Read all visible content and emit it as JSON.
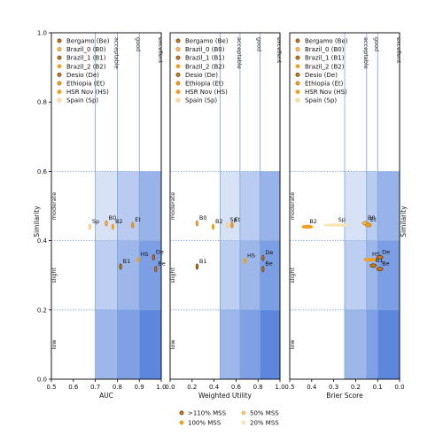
{
  "chart_data": [
    {
      "type": "scatter",
      "xlabel": "AUC",
      "ylabel": "Similarity",
      "xlim": [
        0.5,
        1.0
      ],
      "ylim": [
        0.0,
        1.0
      ],
      "x_reversed": false,
      "xticks": [
        "0.5",
        "0.6",
        "0.7",
        "0.8",
        "0.9",
        "1.0"
      ],
      "yticks": [
        "0.0",
        "0.2",
        "0.4",
        "0.6",
        "0.8",
        "1.0"
      ],
      "thresholds": [
        {
          "x": 0.7,
          "label": ""
        },
        {
          "x": 0.8,
          "label": "acceptable"
        },
        {
          "x": 0.9,
          "label": "good"
        },
        {
          "x": 1.0,
          "label": "excellent"
        }
      ],
      "points": [
        {
          "label": "Sp",
          "x": 0.675,
          "y": 0.44
        },
        {
          "label": "B0",
          "x": 0.75,
          "y": 0.45
        },
        {
          "label": "B2",
          "x": 0.78,
          "y": 0.44
        },
        {
          "label": "Et",
          "x": 0.87,
          "y": 0.445
        },
        {
          "label": "HS",
          "x": 0.895,
          "y": 0.345
        },
        {
          "label": "B1",
          "x": 0.815,
          "y": 0.325
        },
        {
          "label": "De",
          "x": 0.965,
          "y": 0.352
        },
        {
          "label": "Be",
          "x": 0.975,
          "y": 0.318
        }
      ]
    },
    {
      "type": "scatter",
      "xlabel": "Weighted Utility",
      "ylabel": "",
      "xlim": [
        -0.1,
        1.0
      ],
      "ylim": [
        0.0,
        1.0
      ],
      "x_reversed": false,
      "xticks": [
        "0.0",
        "0.2",
        "0.4",
        "0.6",
        "0.8",
        "1.0"
      ],
      "yticks": [],
      "thresholds": [
        {
          "x": 0.4,
          "label": ""
        },
        {
          "x": 0.6,
          "label": "acceptable"
        },
        {
          "x": 0.8,
          "label": "good"
        },
        {
          "x": 1.0,
          "label": "excellent"
        }
      ],
      "points": [
        {
          "label": "B0",
          "x": 0.17,
          "y": 0.45
        },
        {
          "label": "B2",
          "x": 0.33,
          "y": 0.44
        },
        {
          "label": "Sp",
          "x": 0.475,
          "y": 0.445
        },
        {
          "label": "Et",
          "x": 0.52,
          "y": 0.445
        },
        {
          "label": "HS",
          "x": 0.65,
          "y": 0.342
        },
        {
          "label": "B1",
          "x": 0.17,
          "y": 0.325
        },
        {
          "label": "De",
          "x": 0.83,
          "y": 0.35
        },
        {
          "label": "Be",
          "x": 0.83,
          "y": 0.318
        }
      ]
    },
    {
      "type": "scatter",
      "xlabel": "Brier Score",
      "ylabel": "Similarity",
      "xlim": [
        0.5,
        0.0
      ],
      "ylim": [
        0.0,
        1.0
      ],
      "x_reversed": true,
      "xticks": [
        "0.5",
        "0.4",
        "0.3",
        "0.2",
        "0.1",
        "0.0"
      ],
      "yticks": [],
      "thresholds": [
        {
          "x": 0.25,
          "label": ""
        },
        {
          "x": 0.15,
          "label": "acceptable"
        },
        {
          "x": 0.1,
          "label": "good"
        },
        {
          "x": 0.0,
          "label": "excellent"
        }
      ],
      "points": [
        {
          "label": "B2",
          "x": 0.42,
          "y": 0.44
        },
        {
          "label": "Sp",
          "x": 0.29,
          "y": 0.445
        },
        {
          "label": "B0",
          "x": 0.155,
          "y": 0.45
        },
        {
          "label": "Et",
          "x": 0.143,
          "y": 0.445
        },
        {
          "label": "HS",
          "x": 0.135,
          "y": 0.345
        },
        {
          "label": "B1",
          "x": 0.12,
          "y": 0.328
        },
        {
          "label": "De",
          "x": 0.09,
          "y": 0.352
        },
        {
          "label": "Be",
          "x": 0.09,
          "y": 0.318
        }
      ]
    }
  ],
  "regions": {
    "x_bands_alpha": [
      0.12,
      0.28,
      0.45
    ],
    "y_bands": [
      {
        "from": 0.0,
        "to": 0.2,
        "level": 0.38
      },
      {
        "from": 0.2,
        "to": 0.4,
        "level": 0.22
      },
      {
        "from": 0.4,
        "to": 0.6,
        "level": 0.08
      }
    ],
    "y_labels": [
      {
        "y": 0.1,
        "label": "low"
      },
      {
        "y": 0.3,
        "label": "slight"
      },
      {
        "y": 0.5,
        "label": "moderate"
      }
    ],
    "region_color": "#3c6fd6",
    "grid_color": "#7aa6d6"
  },
  "legend_sites": [
    {
      "label": "Bergamo (Be)",
      "color": "#c8781e",
      "edge": "#6b3a05"
    },
    {
      "label": "Brazil_0 (B0)",
      "color": "#f5c16e",
      "edge": "#c87a10"
    },
    {
      "label": "Brazil_1 (B1)",
      "color": "#c8781e",
      "edge": "#6b3a05"
    },
    {
      "label": "Brazil_2 (B2)",
      "color": "#f0a020",
      "edge": "#f0a020"
    },
    {
      "label": "Desio (De)",
      "color": "#c8781e",
      "edge": "#6b3a05"
    },
    {
      "label": "Ethiopia (Et)",
      "color": "#f0a020",
      "edge": "#c87a10"
    },
    {
      "label": "HSR Nov (HS)",
      "color": "#f0a020",
      "edge": "#f0a020"
    },
    {
      "label": "Spain (Sp)",
      "color": "#fbe3b4",
      "edge": "#f5c16e"
    }
  ],
  "legend_mss": [
    {
      "label": ">110% MSS",
      "color": "#c8781e",
      "edge": "#6b3a05"
    },
    {
      "label": "50% MSS",
      "color": "#f5c16e",
      "edge": "#f5c16e"
    },
    {
      "label": "100% MSS",
      "color": "#f0a020",
      "edge": "#f0a020"
    },
    {
      "label": "20% MSS",
      "color": "#fbe3b4",
      "edge": "#fbe3b4"
    }
  ],
  "right_ylabel": "Similarity"
}
